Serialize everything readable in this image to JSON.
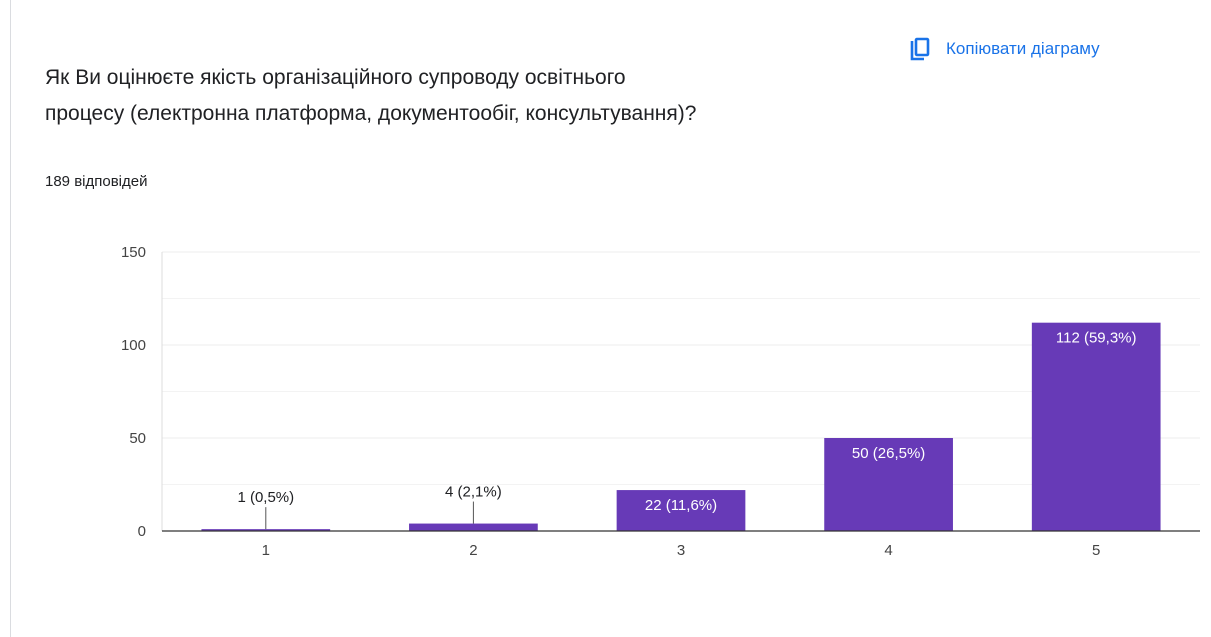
{
  "question": {
    "line1": "Як Ви оцінюєте якість організаційного супроводу освітнього",
    "line2": "процесу (електронна платформа, документообіг, консультування)?"
  },
  "copy_button": {
    "label": "Копіювати діаграму",
    "icon": "copy-icon"
  },
  "responses_count": "189 відповідей",
  "colors": {
    "bar": "#673ab7",
    "accent": "#1a73e8",
    "grid": "#ececec",
    "axis": "#333333"
  },
  "chart_data": {
    "type": "bar",
    "categories": [
      "1",
      "2",
      "3",
      "4",
      "5"
    ],
    "values": [
      1,
      4,
      22,
      50,
      112
    ],
    "data_labels": [
      "1 (0,5%)",
      "4 (2,1%)",
      "22 (11,6%)",
      "50 (26,5%)",
      "112 (59,3%)"
    ],
    "ylim": [
      0,
      150
    ],
    "yticks": [
      0,
      50,
      100,
      150
    ],
    "grid": true,
    "title": "",
    "xlabel": "",
    "ylabel": ""
  }
}
